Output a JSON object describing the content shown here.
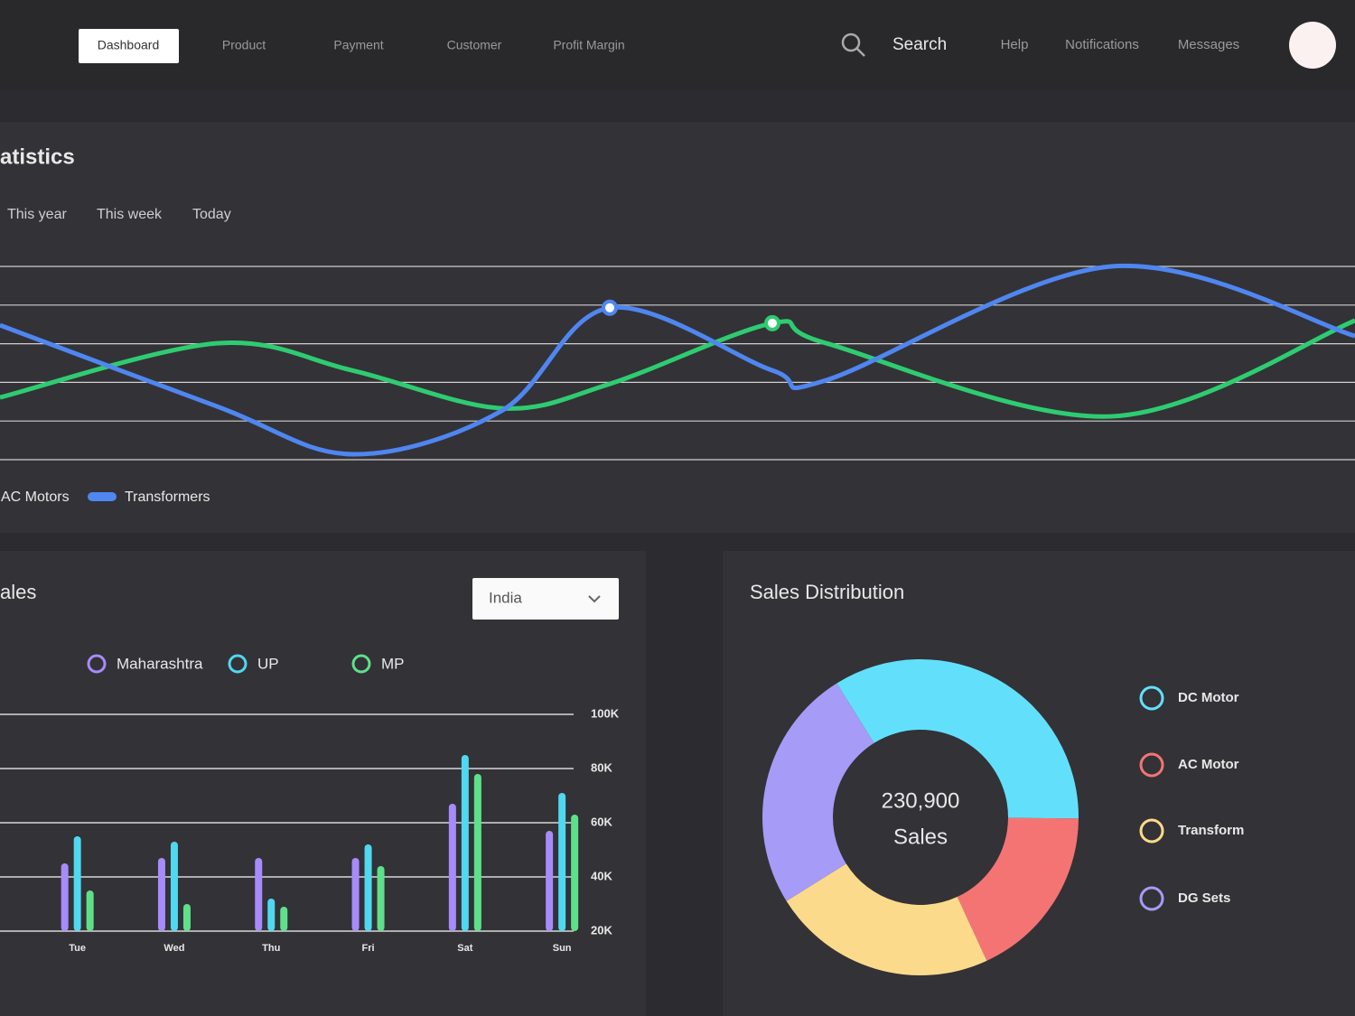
{
  "nav": {
    "items": [
      "Dashboard",
      "Product",
      "Payment",
      "Customer",
      "Profit Margin"
    ],
    "search": "Search",
    "links": [
      "Help",
      "Notifications",
      "Messages"
    ]
  },
  "tabs": [
    "This year",
    "This week",
    "Today"
  ],
  "dropdown": "India",
  "chart_data": [
    {
      "type": "line",
      "title": "atistics",
      "x": [
        0,
        16,
        26,
        37,
        45,
        57,
        61,
        82,
        100
      ],
      "xlim": [
        0,
        100
      ],
      "ylim": [
        0,
        5
      ],
      "yticks": [
        0,
        1,
        2,
        3,
        4,
        5
      ],
      "grid": true,
      "series": [
        {
          "name": "AC Motors",
          "color": "#2ecc71",
          "values": [
            1.61,
            3.01,
            2.31,
            1.33,
            1.96,
            3.53,
            3.01,
            1.12,
            3.6
          ],
          "marker": 5
        },
        {
          "name": "Transformers",
          "color": "#4f86f0",
          "values": [
            3.48,
            1.38,
            0.14,
            1.26,
            3.93,
            2.31,
            2.06,
            5.0,
            3.2
          ],
          "marker": 4
        }
      ]
    },
    {
      "type": "bar",
      "title": "ales",
      "categories": [
        "Tue",
        "Wed",
        "Thu",
        "Fri",
        "Sat",
        "Sun"
      ],
      "ylim": [
        20000,
        100000
      ],
      "yticks": [
        {
          "value": 100000,
          "label": "100K"
        },
        {
          "value": 80000,
          "label": "80K"
        },
        {
          "value": 60000,
          "label": "60K"
        },
        {
          "value": 40000,
          "label": "40K"
        },
        {
          "value": 20000,
          "label": "20K"
        }
      ],
      "grid": true,
      "series": [
        {
          "name": "Maharashtra",
          "color": "#a78bfa",
          "values": [
            45000,
            47000,
            47000,
            47000,
            67000,
            57000
          ]
        },
        {
          "name": "UP",
          "color": "#4fd8f0",
          "values": [
            55000,
            53000,
            32000,
            52000,
            85000,
            71000
          ]
        },
        {
          "name": "MP",
          "color": "#5ee08a",
          "values": [
            35000,
            30000,
            29000,
            44000,
            78000,
            63000
          ]
        }
      ]
    },
    {
      "type": "pie",
      "title": "Sales Distribution",
      "center_value": "230,900",
      "center_text": "Sales",
      "categories": [
        "DC Motor",
        "AC Motor",
        "Transformer",
        "DG Sets"
      ],
      "values": [
        34,
        18,
        23,
        25
      ],
      "colors": [
        "#62e0fb",
        "#f47474",
        "#fbdb8b",
        "#a69bf7"
      ]
    }
  ]
}
